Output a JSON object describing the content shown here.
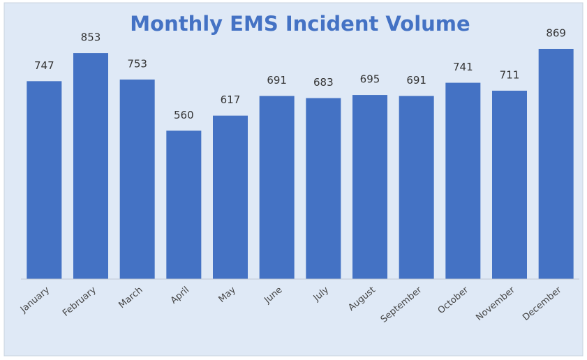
{
  "chart_data": {
    "type": "bar",
    "title": "Monthly EMS Incident Volume",
    "categories": [
      "January",
      "February",
      "March",
      "April",
      "May",
      "June",
      "July",
      "August",
      "September",
      "October",
      "November",
      "December"
    ],
    "values": [
      747,
      853,
      753,
      560,
      617,
      691,
      683,
      695,
      691,
      741,
      711,
      869
    ],
    "color": "#4472c4"
  }
}
